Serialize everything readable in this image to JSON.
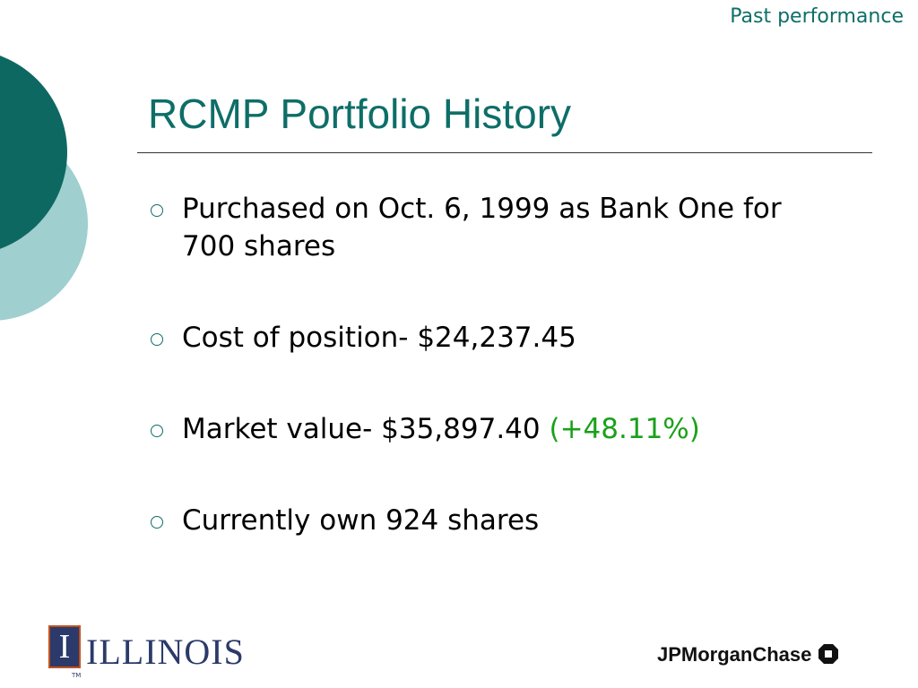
{
  "header": {
    "section": "Past performance",
    "title": "RCMP Portfolio History"
  },
  "bullets": [
    {
      "text": "Purchased on Oct. 6, 1999 as Bank One for 700 shares"
    },
    {
      "text": "Cost of position- $24,237.45"
    },
    {
      "text": "Market value- $35,897.40",
      "highlight": "(+48.11%)"
    },
    {
      "text": "Currently own 924 shares"
    }
  ],
  "footer": {
    "left_logo": "ILLINOIS",
    "left_mark": "I",
    "tm": "TM",
    "right_logo": "JPMorganChase"
  }
}
